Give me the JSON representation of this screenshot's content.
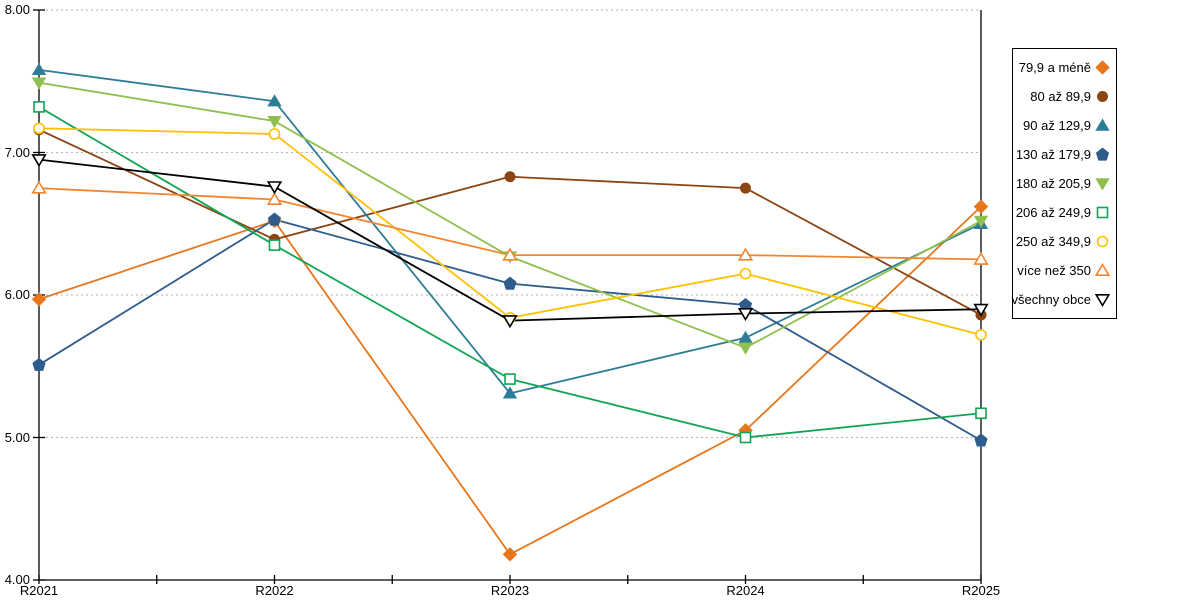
{
  "chart_data": {
    "type": "line",
    "x": [
      "R2021",
      "R2022",
      "R2023",
      "R2024",
      "R2025"
    ],
    "ylim": [
      4,
      8
    ],
    "ytick_labels": [
      "8.00",
      "7.00",
      "6.00",
      "5.00",
      "4.00"
    ],
    "ytick_values": [
      8,
      7,
      6,
      5,
      4
    ],
    "grid": "horizontal-dashed",
    "legend_position": "right",
    "series": [
      {
        "name": "79,9 a méně",
        "marker": "diamond",
        "marker_fill": "filled",
        "color": "#E8761B",
        "values": [
          5.97,
          6.52,
          4.18,
          5.05,
          6.62
        ]
      },
      {
        "name": "80 až 89,9",
        "marker": "circle",
        "marker_fill": "filled",
        "color": "#8B4513",
        "values": [
          7.16,
          6.39,
          6.83,
          6.75,
          5.86
        ]
      },
      {
        "name": "90 až 129,9",
        "marker": "triangle-up",
        "marker_fill": "filled",
        "color": "#2E7D96",
        "values": [
          7.58,
          7.36,
          5.31,
          5.7,
          6.5
        ]
      },
      {
        "name": "130 až 179,9",
        "marker": "pentagon",
        "marker_fill": "filled",
        "color": "#2E5C8C",
        "values": [
          5.51,
          6.53,
          6.08,
          5.93,
          4.98
        ]
      },
      {
        "name": "180 až 205,9",
        "marker": "triangle-down",
        "marker_fill": "filled",
        "color": "#8FC04F",
        "values": [
          7.49,
          7.22,
          6.27,
          5.63,
          6.52
        ]
      },
      {
        "name": "206 až 249,9",
        "marker": "square",
        "marker_fill": "hollow",
        "color": "#0FA555",
        "values": [
          7.32,
          6.35,
          5.41,
          5.0,
          5.17
        ]
      },
      {
        "name": "250 až 349,9",
        "marker": "circle",
        "marker_fill": "hollow",
        "color": "#FFC000",
        "values": [
          7.17,
          7.13,
          5.84,
          6.15,
          5.72
        ]
      },
      {
        "name": "více než 350",
        "marker": "triangle-up",
        "marker_fill": "hollow",
        "color": "#F28530",
        "values": [
          6.75,
          6.67,
          6.28,
          6.28,
          6.25
        ]
      },
      {
        "name": "všechny obce",
        "marker": "triangle-down",
        "marker_fill": "hollow",
        "color": "#000000",
        "values": [
          6.95,
          6.76,
          5.82,
          5.87,
          5.9
        ]
      }
    ]
  },
  "colors": {
    "background": "#ffffff",
    "axis": "#000000",
    "grid": "#b3b3b3",
    "legend_border": "#000000",
    "text": "#000000"
  }
}
